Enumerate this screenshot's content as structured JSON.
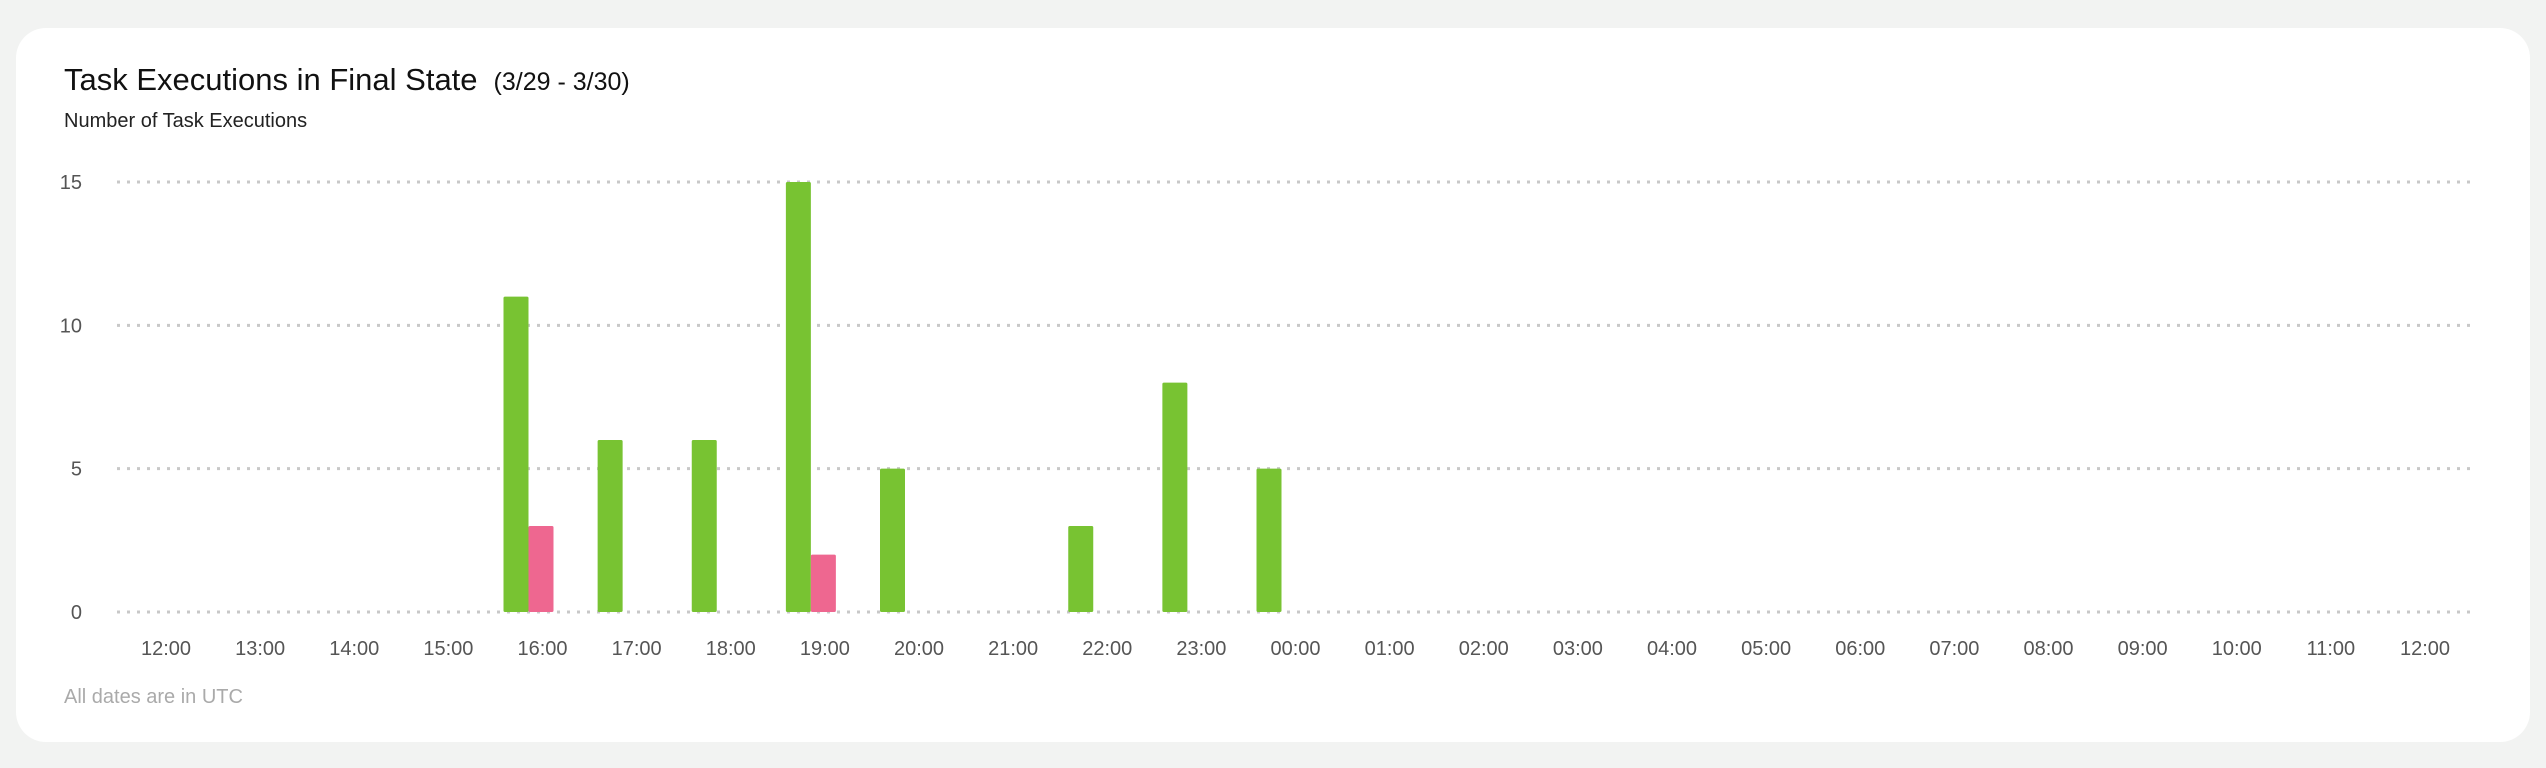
{
  "colors": {
    "background": "#f2f3f2",
    "card": "#ffffff",
    "succeeded": "#78c332",
    "failed": "#ee6790",
    "grid": "#c8c8c8"
  },
  "chart_data": {
    "type": "bar",
    "title": "Task Executions in Final State",
    "date_range": "(3/29 - 3/30)",
    "ylabel": "Number of Task Executions",
    "footnote": "All dates are in UTC",
    "ylim": [
      0,
      15
    ],
    "yticks": [
      "0",
      "5",
      "10",
      "15"
    ],
    "grid": true,
    "categories": [
      "12:00",
      "13:00",
      "14:00",
      "15:00",
      "16:00",
      "17:00",
      "18:00",
      "19:00",
      "20:00",
      "21:00",
      "22:00",
      "23:00",
      "00:00",
      "01:00",
      "02:00",
      "03:00",
      "04:00",
      "05:00",
      "06:00",
      "07:00",
      "08:00",
      "09:00",
      "10:00",
      "11:00",
      "12:00"
    ],
    "series": [
      {
        "color": "#78c332",
        "values": [
          0,
          0,
          0,
          0,
          11,
          6,
          6,
          15,
          5,
          0,
          3,
          8,
          5,
          0,
          0,
          0,
          0,
          0,
          0,
          0,
          0,
          0,
          0,
          0,
          0
        ]
      },
      {
        "color": "#ee6790",
        "values": [
          0,
          0,
          0,
          0,
          3,
          0,
          0,
          2,
          0,
          0,
          0,
          0,
          0,
          0,
          0,
          0,
          0,
          0,
          0,
          0,
          0,
          0,
          0,
          0,
          0
        ]
      }
    ]
  }
}
